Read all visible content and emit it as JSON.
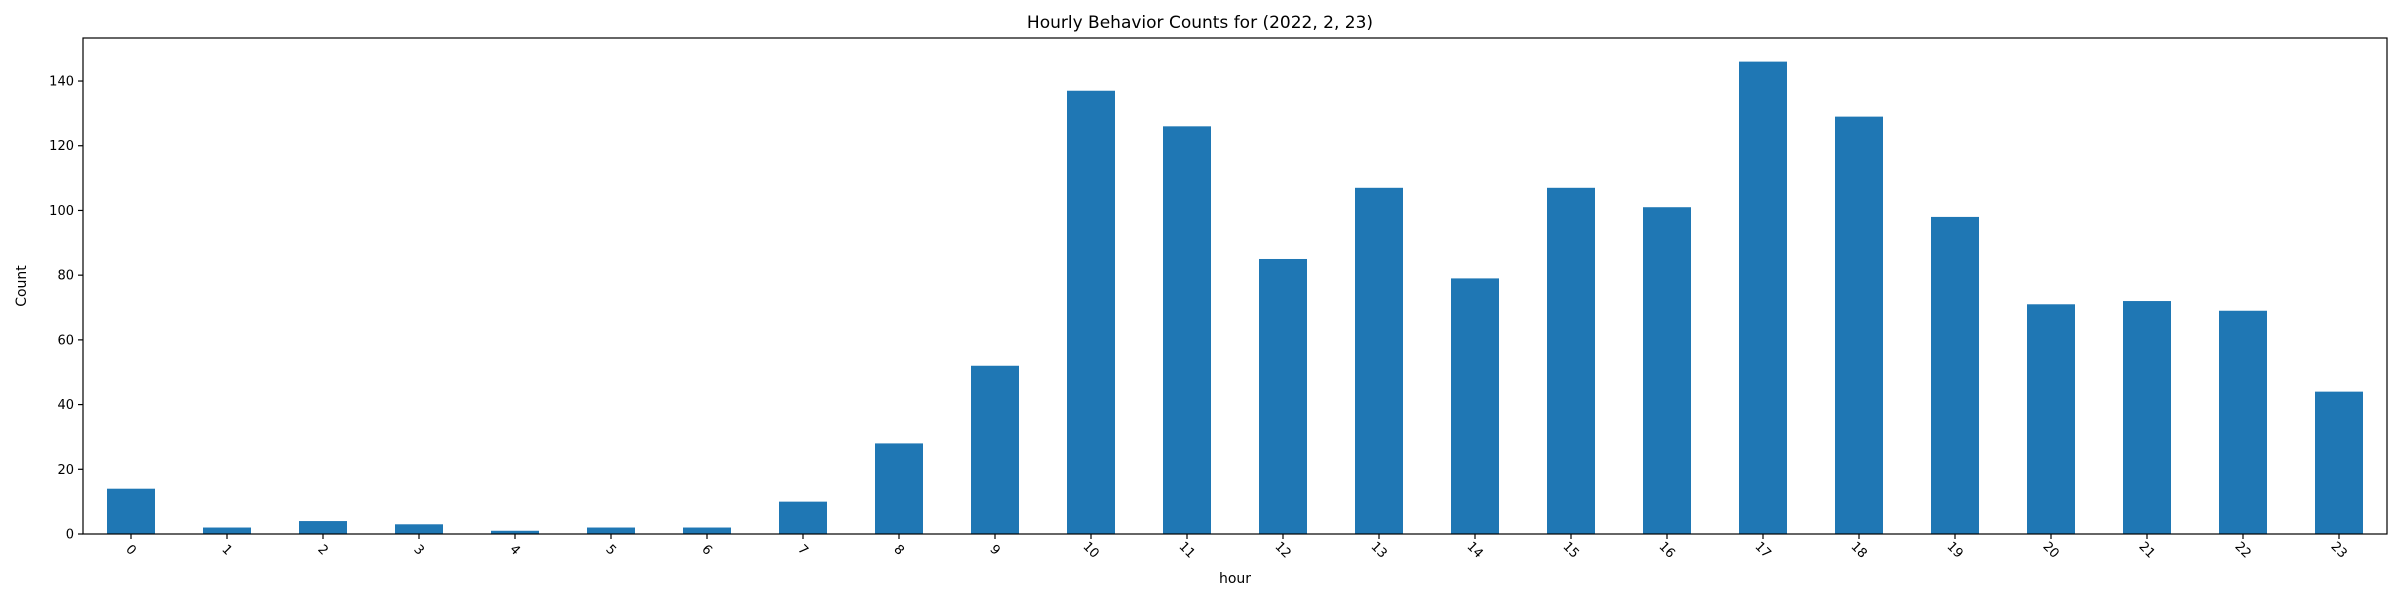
{
  "chart_data": {
    "type": "bar",
    "title": "Hourly Behavior Counts for (2022, 2, 23)",
    "xlabel": "hour",
    "ylabel": "Count",
    "categories": [
      "0",
      "1",
      "2",
      "3",
      "4",
      "5",
      "6",
      "7",
      "8",
      "9",
      "10",
      "11",
      "12",
      "13",
      "14",
      "15",
      "16",
      "17",
      "18",
      "19",
      "20",
      "21",
      "22",
      "23"
    ],
    "values": [
      14,
      2,
      4,
      3,
      1,
      2,
      2,
      10,
      28,
      52,
      137,
      126,
      85,
      107,
      79,
      107,
      101,
      146,
      129,
      98,
      71,
      72,
      69,
      44
    ],
    "ylim": [
      0,
      153.3
    ],
    "yticks": [
      0,
      20,
      40,
      60,
      80,
      100,
      120,
      140
    ],
    "bar_color": "#1f77b4",
    "grid": false,
    "legend": "none",
    "xtick_rotation": 45
  }
}
